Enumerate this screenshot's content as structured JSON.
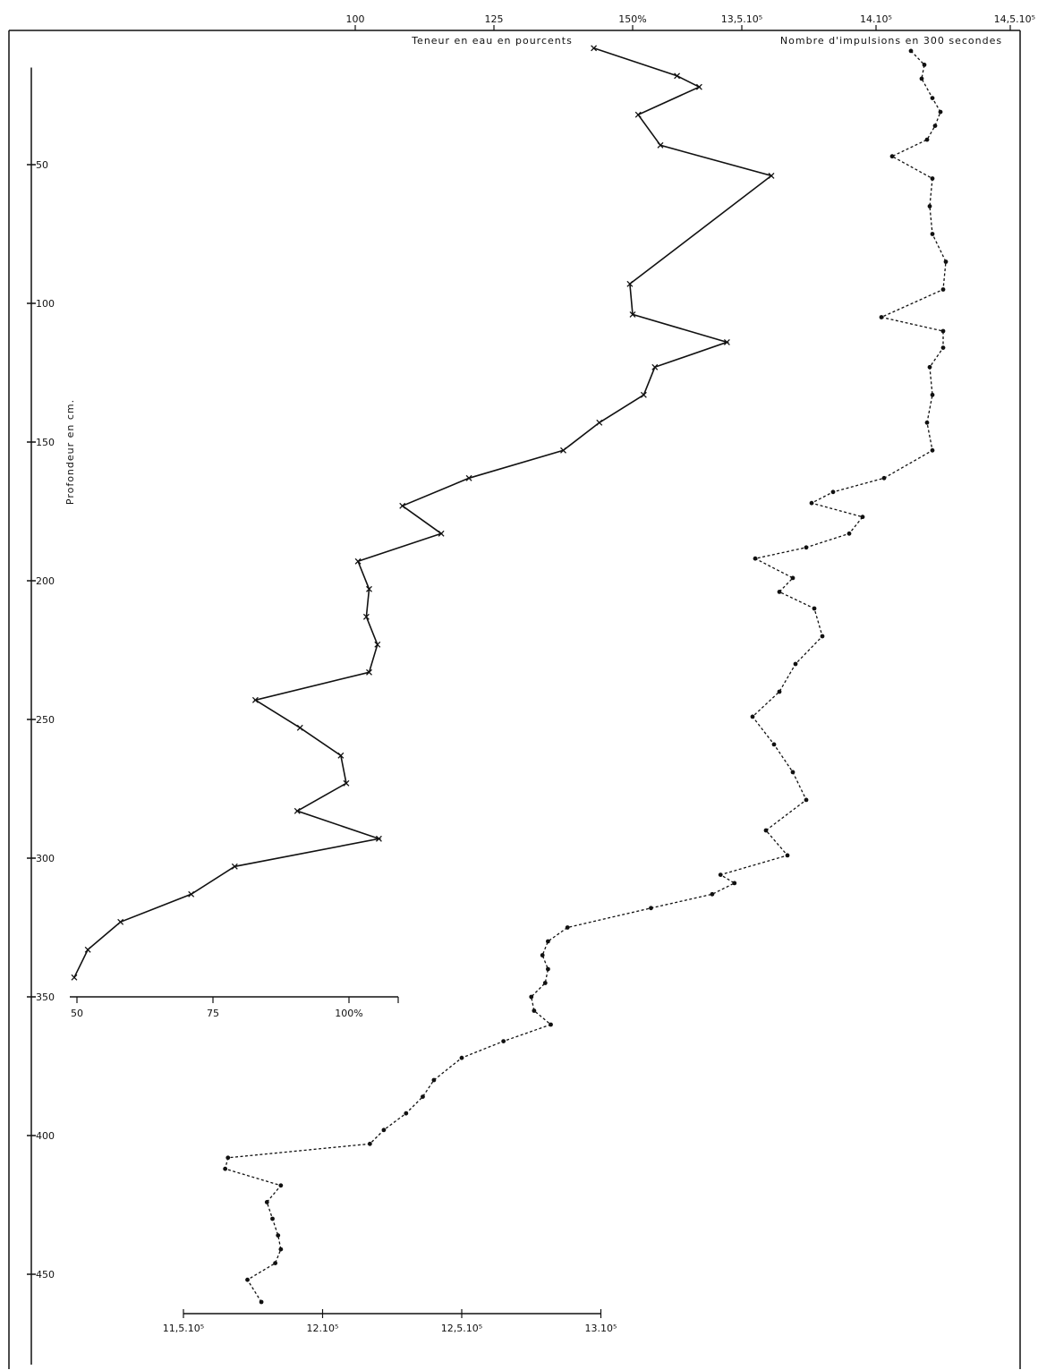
{
  "chart_data": {
    "type": "line",
    "titles": {
      "water": "Teneur en eau en pourcents",
      "counts": "Nombre d'impulsions en 300 secondes",
      "depth": "Profondeur en cm."
    },
    "depth_axis": {
      "label": "Profondeur en cm.",
      "ticks": [
        50,
        100,
        150,
        200,
        250,
        300,
        350,
        400,
        450
      ],
      "tick_labels": [
        "50",
        "100",
        "150",
        "200",
        "250",
        "300",
        "350",
        "400",
        "450"
      ],
      "range": [
        0,
        480
      ]
    },
    "water_axis_top": {
      "ticks": [
        100,
        125,
        150
      ],
      "tick_labels": [
        "100",
        "125",
        "150%"
      ]
    },
    "water_axis_bottom": {
      "ticks": [
        50,
        75,
        100
      ],
      "tick_labels": [
        "50",
        "75",
        "100%"
      ]
    },
    "counts_axis_top": {
      "ticks": [
        1350000,
        1400000,
        1450000
      ],
      "tick_labels": [
        "13,5.10⁵",
        "14.10⁵",
        "14,5.10⁵"
      ]
    },
    "counts_axis_bottom": {
      "ticks": [
        1150000,
        1200000,
        1250000,
        1300000
      ],
      "tick_labels": [
        "11,5.10⁵",
        "12.10⁵",
        "12,5.10⁵",
        "13.10⁵"
      ]
    },
    "series": [
      {
        "name": "Teneur en eau en pourcents",
        "style": "solid",
        "marker": "x",
        "points": [
          [
            8,
            143
          ],
          [
            18,
            158
          ],
          [
            22,
            162
          ],
          [
            32,
            151
          ],
          [
            43,
            155
          ],
          [
            54,
            175
          ],
          [
            93,
            149.5
          ],
          [
            104,
            150
          ],
          [
            114,
            167
          ],
          [
            123,
            154
          ],
          [
            133,
            152
          ],
          [
            143,
            144
          ],
          [
            153,
            137.5
          ],
          [
            163,
            120.5
          ],
          [
            173,
            108.5
          ],
          [
            183,
            115.5
          ],
          [
            193,
            100.5
          ],
          [
            203,
            102.5
          ],
          [
            213,
            102
          ],
          [
            223,
            104
          ],
          [
            233,
            102.5
          ],
          [
            243,
            82
          ],
          [
            253,
            91
          ],
          [
            263,
            98.5
          ],
          [
            273,
            99.5
          ],
          [
            283,
            90.5
          ],
          [
            293,
            105.5
          ],
          [
            303,
            79
          ],
          [
            313,
            71
          ],
          [
            323,
            58
          ],
          [
            333,
            52
          ],
          [
            343,
            49.5
          ]
        ]
      },
      {
        "name": "Nombre d'impulsions en 300 secondes",
        "style": "dashed",
        "marker": "dot",
        "points": [
          [
            9,
            1413000
          ],
          [
            14,
            1418000
          ],
          [
            19,
            1417000
          ],
          [
            26,
            1421000
          ],
          [
            31,
            1424000
          ],
          [
            36,
            1422000
          ],
          [
            41,
            1419000
          ],
          [
            47,
            1406000
          ],
          [
            55,
            1421000
          ],
          [
            65,
            1420000
          ],
          [
            75,
            1421000
          ],
          [
            85,
            1426000
          ],
          [
            95,
            1425000
          ],
          [
            105,
            1402000
          ],
          [
            110,
            1425000
          ],
          [
            116,
            1425000
          ],
          [
            123,
            1420000
          ],
          [
            133,
            1421000
          ],
          [
            143,
            1419000
          ],
          [
            153,
            1421000
          ],
          [
            163,
            1403000
          ],
          [
            168,
            1384000
          ],
          [
            172,
            1376000
          ],
          [
            177,
            1395000
          ],
          [
            183,
            1390000
          ],
          [
            188,
            1374000
          ],
          [
            192,
            1355000
          ],
          [
            199,
            1369000
          ],
          [
            204,
            1364000
          ],
          [
            210,
            1377000
          ],
          [
            220,
            1380000
          ],
          [
            230,
            1370000
          ],
          [
            240,
            1364000
          ],
          [
            249,
            1354000
          ],
          [
            259,
            1362000
          ],
          [
            269,
            1369000
          ],
          [
            279,
            1374000
          ],
          [
            290,
            1359000
          ],
          [
            299,
            1367000
          ],
          [
            306,
            1343000
          ],
          [
            309,
            1348000
          ],
          [
            313,
            1340000
          ],
          [
            318,
            1318000
          ],
          [
            325,
            1288000
          ],
          [
            330,
            1281000
          ],
          [
            335,
            1279000
          ],
          [
            340,
            1281000
          ],
          [
            345,
            1280000
          ],
          [
            350,
            1275000
          ],
          [
            355,
            1276000
          ],
          [
            360,
            1282000
          ],
          [
            366,
            1265000
          ],
          [
            372,
            1250000
          ],
          [
            380,
            1240000
          ],
          [
            386,
            1236000
          ],
          [
            392,
            1230000
          ],
          [
            398,
            1222000
          ],
          [
            403,
            1217000
          ],
          [
            408,
            1166000
          ],
          [
            412,
            1165000
          ],
          [
            418,
            1185000
          ],
          [
            424,
            1180000
          ],
          [
            430,
            1182000
          ],
          [
            436,
            1184000
          ],
          [
            441,
            1185000
          ],
          [
            446,
            1183000
          ],
          [
            452,
            1173000
          ],
          [
            460,
            1178000
          ]
        ]
      }
    ]
  }
}
